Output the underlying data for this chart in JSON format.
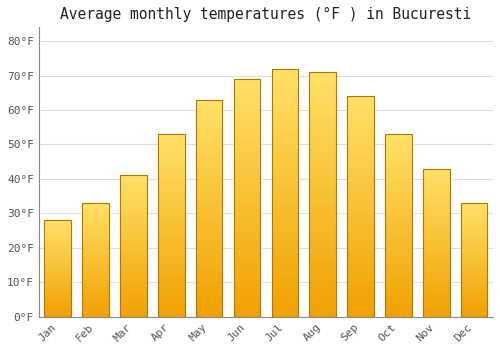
{
  "months": [
    "Jan",
    "Feb",
    "Mar",
    "Apr",
    "May",
    "Jun",
    "Jul",
    "Aug",
    "Sep",
    "Oct",
    "Nov",
    "Dec"
  ],
  "values": [
    28,
    33,
    41,
    53,
    63,
    69,
    72,
    71,
    64,
    53,
    43,
    33
  ],
  "bar_color_top": "#FFD966",
  "bar_color_bottom": "#F0A500",
  "bar_edge_color": "#B07800",
  "title": "Average monthly temperatures (°F ) in Bucuresti",
  "title_fontsize": 10.5,
  "title_font": "monospace",
  "ylim": [
    0,
    84
  ],
  "yticks": [
    0,
    10,
    20,
    30,
    40,
    50,
    60,
    70,
    80
  ],
  "ytick_labels": [
    "0°F",
    "10°F",
    "20°F",
    "30°F",
    "40°F",
    "50°F",
    "60°F",
    "70°F",
    "80°F"
  ],
  "background_color": "#FFFFFF",
  "grid_color": "#DDDDDD",
  "tick_font": "monospace",
  "tick_fontsize": 8,
  "xlabel_rotation": 45,
  "bar_width": 0.7
}
